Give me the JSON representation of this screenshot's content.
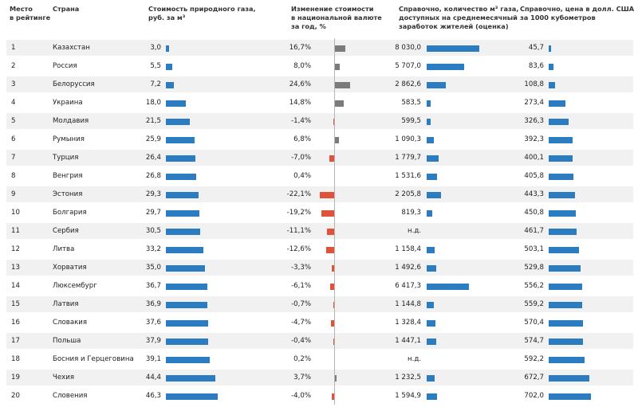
{
  "colors": {
    "blue": "#2b7cc0",
    "grey": "#7b7b7b",
    "red": "#e0533a",
    "stripe": "#f1f1f1"
  },
  "headers": {
    "rank": "Место\nв рейтинге",
    "country": "Страна",
    "price": "Стоимость природного газа,\nруб. за м³",
    "change": "Изменение стоимости\nв национальной валюте\nза год, %",
    "volume": "Справочно, количество м³ газа,\nдоступных на среднемесячный\nзаработок жителей (оценка)",
    "usd": "Справочно, цена в долл. США\nза 1000 кубометров"
  },
  "chart_data": {
    "type": "table",
    "columns": [
      "Место в рейтинге",
      "Страна",
      "Стоимость природного газа, руб. за м³",
      "Изменение стоимости в национальной валюте за год, %",
      "Справочно, количество м³ газа, доступных на среднемесячный заработок жителей (оценка)",
      "Справочно, цена в долл. США за 1000 кубометров"
    ],
    "rows": [
      {
        "rank": "1",
        "country": "Казахстан",
        "price": 3.0,
        "price_label": "3,0",
        "change": 16.7,
        "change_label": "16,7%",
        "volume": 8030.0,
        "volume_label": "8 030,0",
        "usd": 45.7,
        "usd_label": "45,7"
      },
      {
        "rank": "2",
        "country": "Россия",
        "price": 5.5,
        "price_label": "5,5",
        "change": 8.0,
        "change_label": "8,0%",
        "volume": 5707.0,
        "volume_label": "5 707,0",
        "usd": 83.6,
        "usd_label": "83,6"
      },
      {
        "rank": "3",
        "country": "Белоруссия",
        "price": 7.2,
        "price_label": "7,2",
        "change": 24.6,
        "change_label": "24,6%",
        "volume": 2862.6,
        "volume_label": "2 862,6",
        "usd": 108.8,
        "usd_label": "108,8"
      },
      {
        "rank": "4",
        "country": "Украина",
        "price": 18.0,
        "price_label": "18,0",
        "change": 14.8,
        "change_label": "14,8%",
        "volume": 583.5,
        "volume_label": "583,5",
        "usd": 273.4,
        "usd_label": "273,4"
      },
      {
        "rank": "5",
        "country": "Молдавия",
        "price": 21.5,
        "price_label": "21,5",
        "change": -1.4,
        "change_label": "-1,4%",
        "volume": 599.5,
        "volume_label": "599,5",
        "usd": 326.3,
        "usd_label": "326,3"
      },
      {
        "rank": "6",
        "country": "Румыния",
        "price": 25.9,
        "price_label": "25,9",
        "change": 6.8,
        "change_label": "6,8%",
        "volume": 1090.3,
        "volume_label": "1 090,3",
        "usd": 392.3,
        "usd_label": "392,3"
      },
      {
        "rank": "7",
        "country": "Турция",
        "price": 26.4,
        "price_label": "26,4",
        "change": -7.0,
        "change_label": "-7,0%",
        "volume": 1779.7,
        "volume_label": "1 779,7",
        "usd": 400.1,
        "usd_label": "400,1"
      },
      {
        "rank": "8",
        "country": "Венгрия",
        "price": 26.8,
        "price_label": "26,8",
        "change": 0.4,
        "change_label": "0,4%",
        "volume": 1531.6,
        "volume_label": "1 531,6",
        "usd": 405.8,
        "usd_label": "405,8"
      },
      {
        "rank": "9",
        "country": "Эстония",
        "price": 29.3,
        "price_label": "29,3",
        "change": -22.1,
        "change_label": "-22,1%",
        "volume": 2205.8,
        "volume_label": "2 205,8",
        "usd": 443.3,
        "usd_label": "443,3"
      },
      {
        "rank": "10",
        "country": "Болгария",
        "price": 29.7,
        "price_label": "29,7",
        "change": -19.2,
        "change_label": "-19,2%",
        "volume": 819.3,
        "volume_label": "819,3",
        "usd": 450.8,
        "usd_label": "450,8"
      },
      {
        "rank": "11",
        "country": "Сербия",
        "price": 30.5,
        "price_label": "30,5",
        "change": -11.1,
        "change_label": "-11,1%",
        "volume": null,
        "volume_label": "н.д.",
        "usd": 461.7,
        "usd_label": "461,7"
      },
      {
        "rank": "12",
        "country": "Литва",
        "price": 33.2,
        "price_label": "33,2",
        "change": -12.6,
        "change_label": "-12,6%",
        "volume": 1158.4,
        "volume_label": "1 158,4",
        "usd": 503.1,
        "usd_label": "503,1"
      },
      {
        "rank": "13",
        "country": "Хорватия",
        "price": 35.0,
        "price_label": "35,0",
        "change": -3.3,
        "change_label": "-3,3%",
        "volume": 1492.6,
        "volume_label": "1 492,6",
        "usd": 529.8,
        "usd_label": "529,8"
      },
      {
        "rank": "14",
        "country": "Люксембург",
        "price": 36.7,
        "price_label": "36,7",
        "change": -6.1,
        "change_label": "-6,1%",
        "volume": 6417.3,
        "volume_label": "6 417,3",
        "usd": 556.2,
        "usd_label": "556,2"
      },
      {
        "rank": "15",
        "country": "Латвия",
        "price": 36.9,
        "price_label": "36,9",
        "change": -0.7,
        "change_label": "-0,7%",
        "volume": 1144.8,
        "volume_label": "1 144,8",
        "usd": 559.2,
        "usd_label": "559,2"
      },
      {
        "rank": "16",
        "country": "Словакия",
        "price": 37.6,
        "price_label": "37,6",
        "change": -4.7,
        "change_label": "-4,7%",
        "volume": 1328.4,
        "volume_label": "1 328,4",
        "usd": 570.4,
        "usd_label": "570,4"
      },
      {
        "rank": "17",
        "country": "Польша",
        "price": 37.9,
        "price_label": "37,9",
        "change": -0.4,
        "change_label": "-0,4%",
        "volume": 1447.1,
        "volume_label": "1 447,1",
        "usd": 574.7,
        "usd_label": "574,7"
      },
      {
        "rank": "18",
        "country": "Босния и Герцеговина",
        "price": 39.1,
        "price_label": "39,1",
        "change": 0.2,
        "change_label": "0,2%",
        "volume": null,
        "volume_label": "н.д.",
        "usd": 592.2,
        "usd_label": "592,2"
      },
      {
        "rank": "19",
        "country": "Чехия",
        "price": 44.4,
        "price_label": "44,4",
        "change": 3.7,
        "change_label": "3,7%",
        "volume": 1232.5,
        "volume_label": "1 232,5",
        "usd": 672.7,
        "usd_label": "672,7"
      },
      {
        "rank": "20",
        "country": "Словения",
        "price": 46.3,
        "price_label": "46,3",
        "change": -4.0,
        "change_label": "-4,0%",
        "volume": 1594.9,
        "volume_label": "1 594,9",
        "usd": 702.0,
        "usd_label": "702,0"
      }
    ]
  }
}
